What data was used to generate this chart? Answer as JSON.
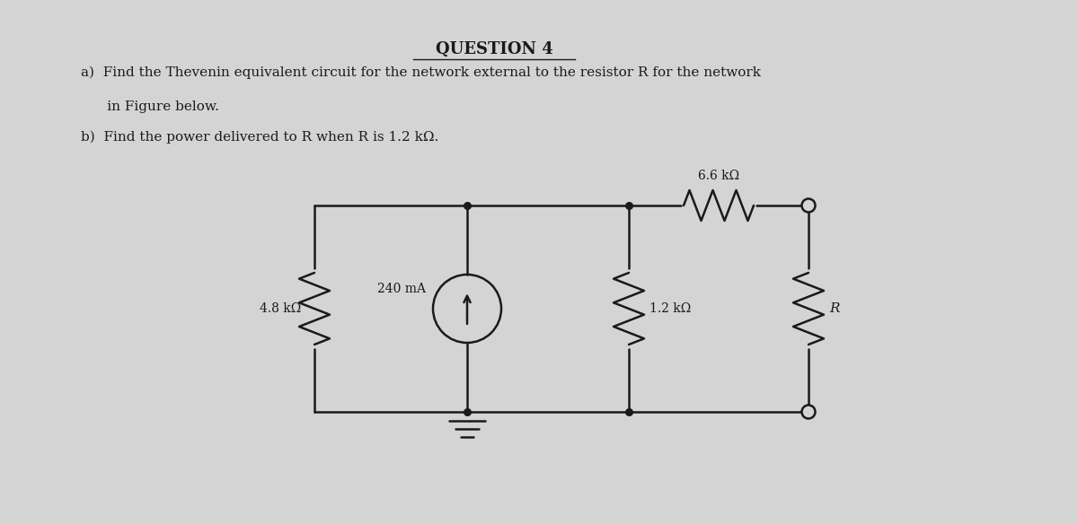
{
  "bg_color": "#d4d4d4",
  "title": "QUESTION 4",
  "line_a": "a)  Find the Thevenin equivalent circuit for the network external to the resistor R for the network",
  "line_b": "      in Figure below.",
  "line_c": "b)  Find the power delivered to R when R is 1.2 kΩ.",
  "label_4_8": "4.8 kΩ",
  "label_240": "240 mA",
  "label_6_6": "6.6 kΩ",
  "label_1_2": "1.2 kΩ",
  "label_R": "R",
  "circuit_color": "#1a1a1a",
  "text_color": "#1a1a1a"
}
